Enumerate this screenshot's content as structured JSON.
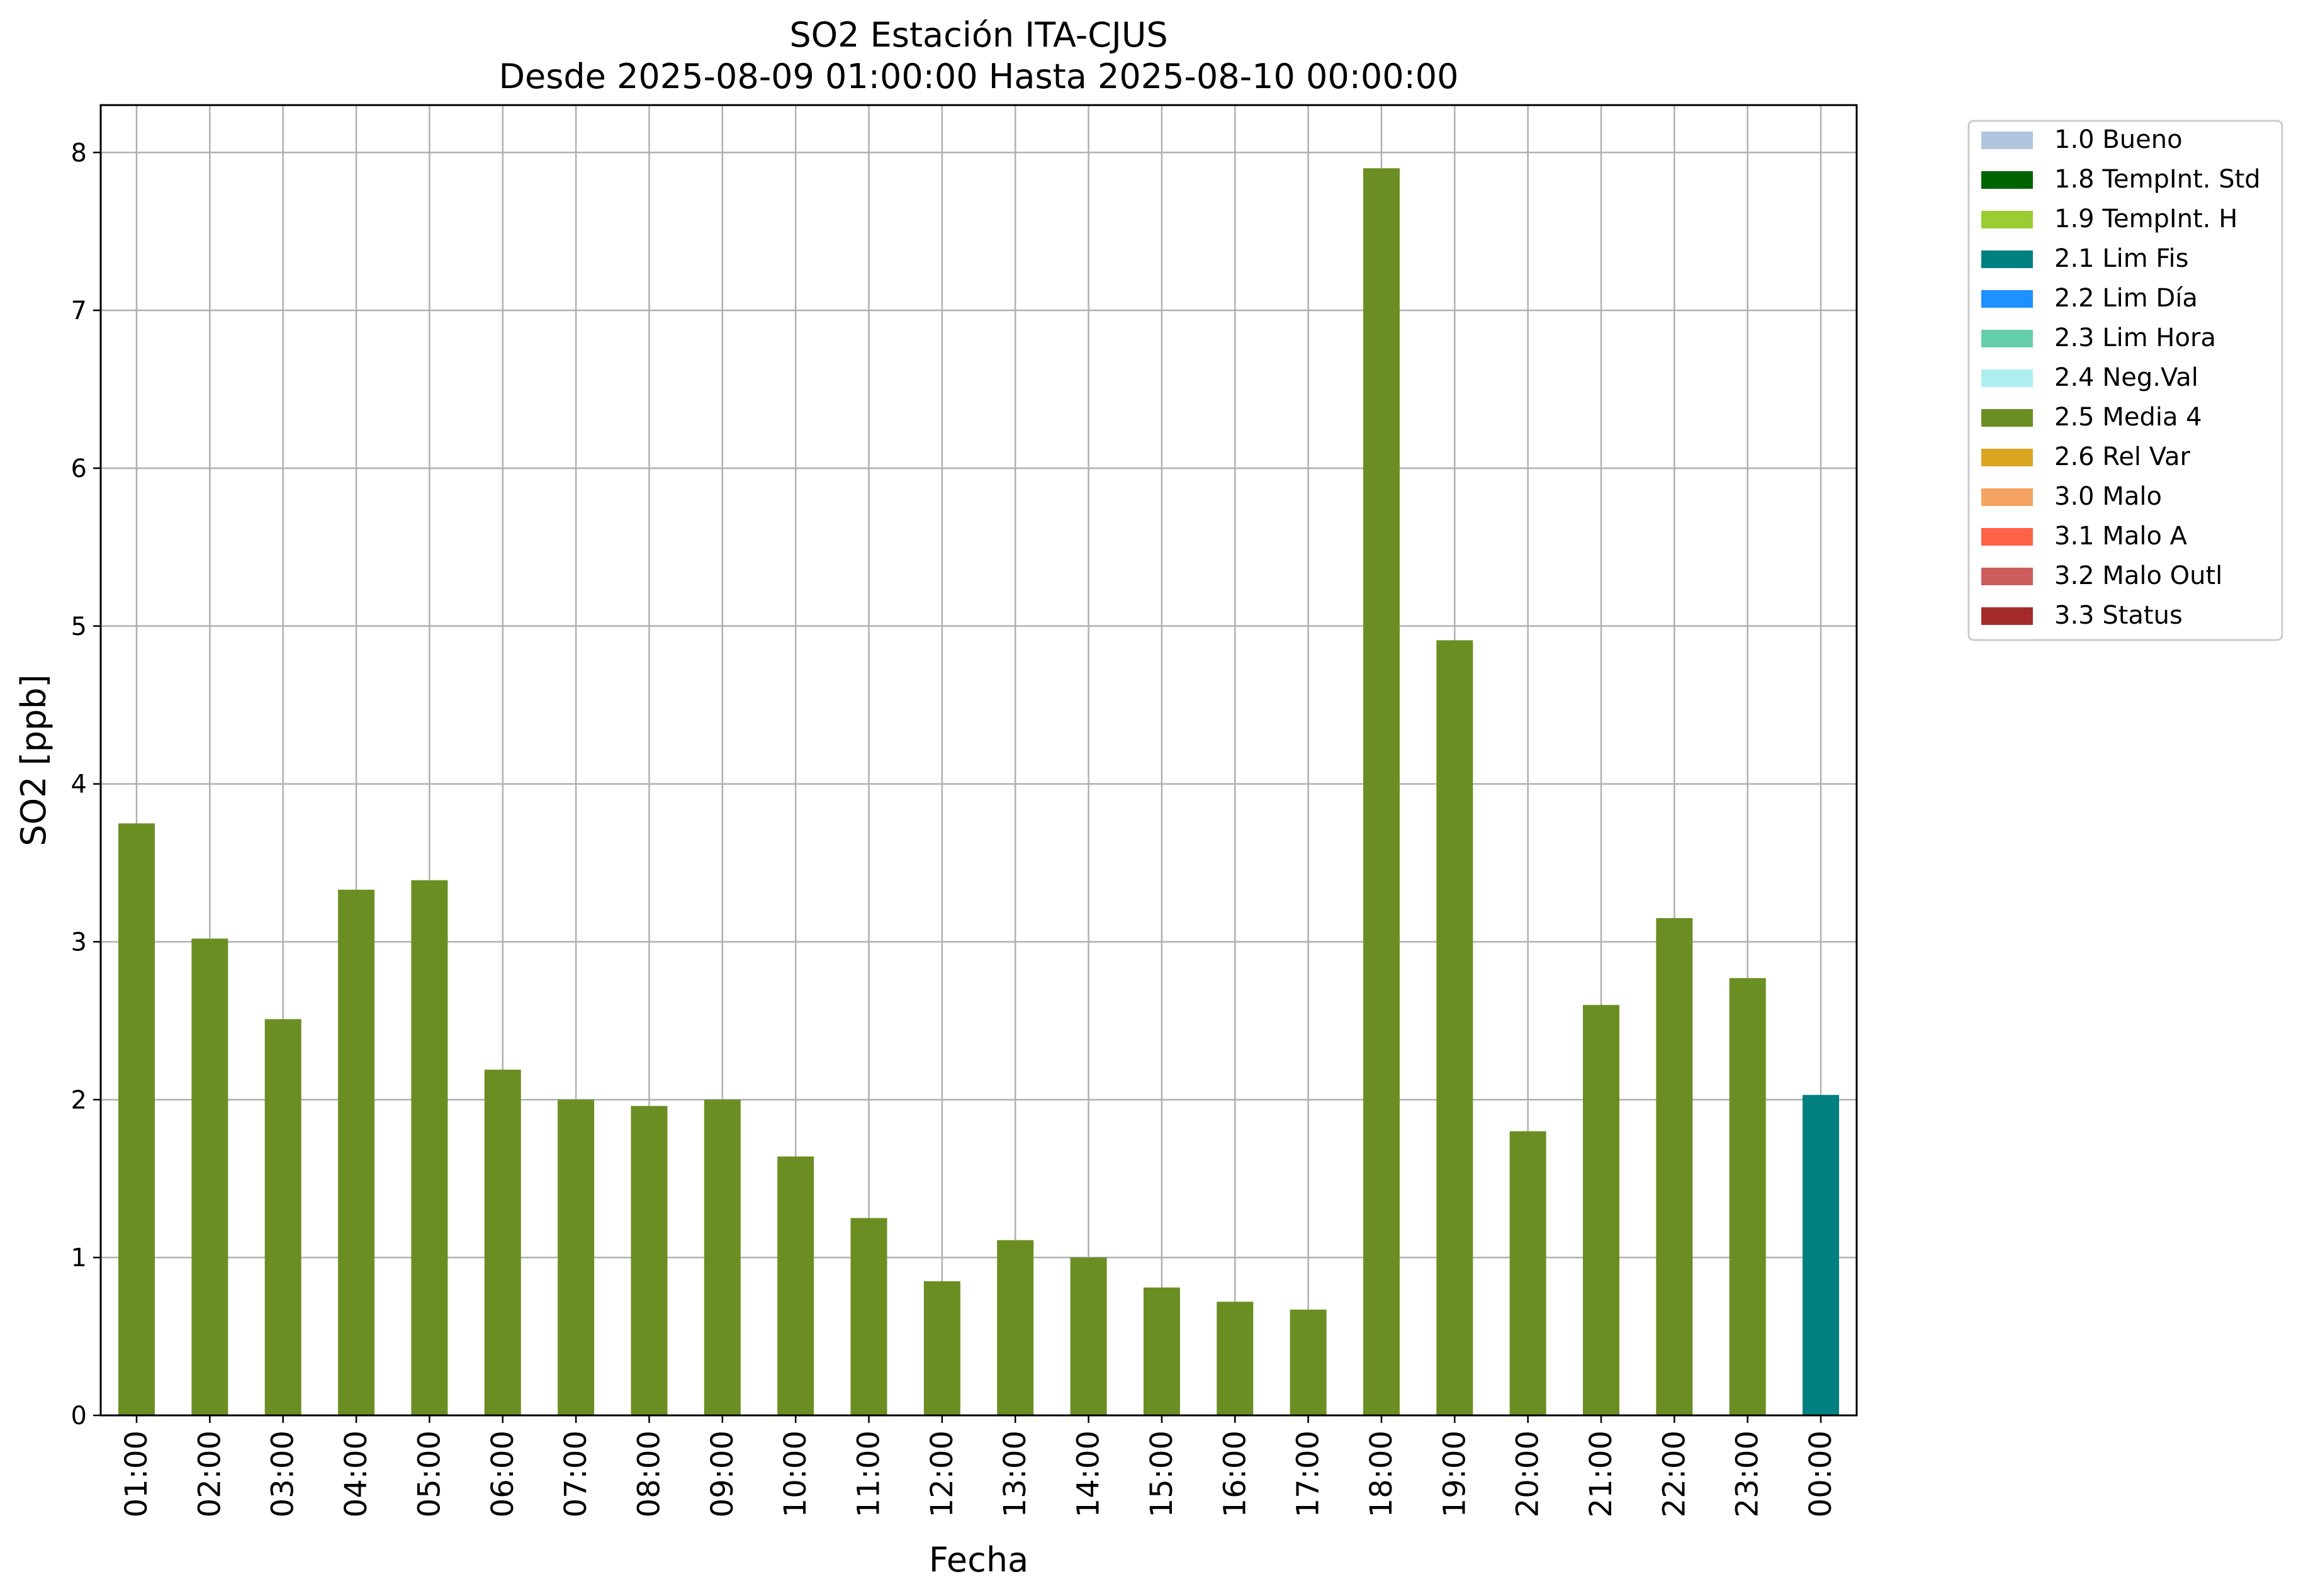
{
  "chart_data": {
    "type": "bar",
    "title": "SO2 Estación ITA-CJUS",
    "subtitle": "Desde 2025-08-09 01:00:00 Hasta 2025-08-10 00:00:00",
    "xlabel": "Fecha",
    "ylabel": "SO2 [ppb]",
    "ylim": [
      0,
      8.3
    ],
    "yticks": [
      "0",
      "1",
      "2",
      "3",
      "4",
      "5",
      "6",
      "7",
      "8"
    ],
    "grid": true,
    "legend_position": "outside-top-right",
    "categories": [
      "01:00",
      "02:00",
      "03:00",
      "04:00",
      "05:00",
      "06:00",
      "07:00",
      "08:00",
      "09:00",
      "10:00",
      "11:00",
      "12:00",
      "13:00",
      "14:00",
      "15:00",
      "16:00",
      "17:00",
      "18:00",
      "19:00",
      "20:00",
      "21:00",
      "22:00",
      "23:00",
      "00:00"
    ],
    "values": [
      3.75,
      3.02,
      2.51,
      3.33,
      3.39,
      2.19,
      2.0,
      1.96,
      2.0,
      1.64,
      1.25,
      0.85,
      1.11,
      1.0,
      0.81,
      0.72,
      0.67,
      7.9,
      4.91,
      1.8,
      2.6,
      3.15,
      2.77,
      2.03
    ],
    "value_status": [
      "2.5 Media 4",
      "2.5 Media 4",
      "2.5 Media 4",
      "2.5 Media 4",
      "2.5 Media 4",
      "2.5 Media 4",
      "2.5 Media 4",
      "2.5 Media 4",
      "2.5 Media 4",
      "2.5 Media 4",
      "2.5 Media 4",
      "2.5 Media 4",
      "2.5 Media 4",
      "2.5 Media 4",
      "2.5 Media 4",
      "2.5 Media 4",
      "2.5 Media 4",
      "2.5 Media 4",
      "2.5 Media 4",
      "2.5 Media 4",
      "2.5 Media 4",
      "2.5 Media 4",
      "2.5 Media 4",
      "2.1 Lim Fis"
    ],
    "legend": [
      {
        "label": "1.0 Bueno",
        "color": "#b0c4de"
      },
      {
        "label": "1.8 TempInt. Std",
        "color": "#006400"
      },
      {
        "label": "1.9 TempInt. H",
        "color": "#9acd32"
      },
      {
        "label": "2.1 Lim Fis",
        "color": "#008080"
      },
      {
        "label": "2.2 Lim Día",
        "color": "#1e90ff"
      },
      {
        "label": "2.3 Lim Hora",
        "color": "#66cdaa"
      },
      {
        "label": "2.4 Neg.Val",
        "color": "#afeeee"
      },
      {
        "label": "2.5 Media 4",
        "color": "#6b8e23"
      },
      {
        "label": "2.6 Rel Var",
        "color": "#daa520"
      },
      {
        "label": "3.0 Malo",
        "color": "#f4a460"
      },
      {
        "label": "3.1 Malo A",
        "color": "#ff6347"
      },
      {
        "label": "3.2 Malo Outl",
        "color": "#cd5c5c"
      },
      {
        "label": "3.3 Status",
        "color": "#a52a2a"
      }
    ]
  }
}
